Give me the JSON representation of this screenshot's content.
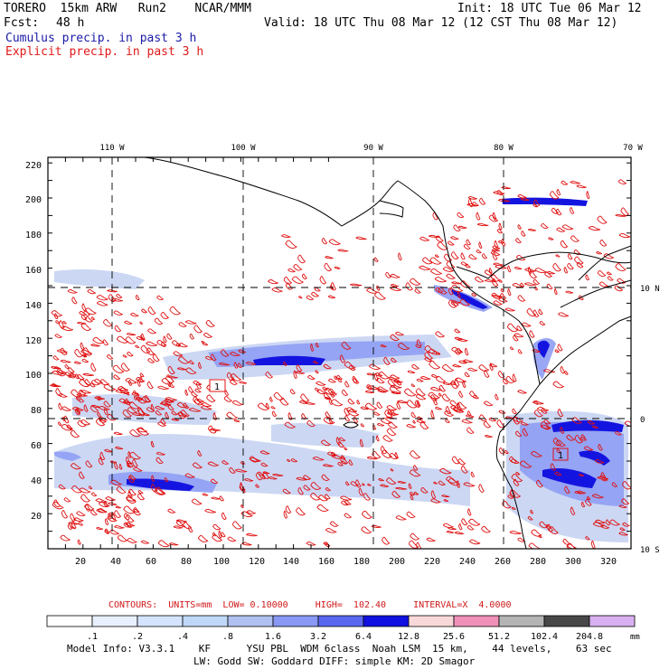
{
  "header": {
    "model": "TORERO  15km ARW   Run2    NCAR/MMM",
    "init": "Init: 18 UTC Tue 06 Mar 12",
    "fcst_label": "Fcst:",
    "fcst_value": "48 h",
    "valid": "Valid: 18 UTC Thu 08 Mar 12 (12 CST Thu 08 Mar 12)",
    "field_cumulus": "Cumulus precip. in past 3 h",
    "field_explicit": "Explicit precip. in past 3 h"
  },
  "map": {
    "lon_labels": [
      "110 W",
      "100 W",
      "90 W",
      "80 W",
      "70 W"
    ],
    "lat_labels": [
      "10 N",
      "0",
      "10 S"
    ],
    "y_ticks": [
      "220",
      "200",
      "180",
      "160",
      "140",
      "120",
      "100",
      "80",
      "60",
      "40",
      "20"
    ],
    "x_ticks": [
      "20",
      "40",
      "60",
      "80",
      "100",
      "120",
      "140",
      "160",
      "180",
      "200",
      "220",
      "240",
      "260",
      "280",
      "300",
      "320"
    ],
    "label_box_1": "1",
    "label_box_2": "1",
    "colors": {
      "contour": "#e01010",
      "coast": "#000000",
      "precip_light": "#c8d4f0",
      "precip_mid": "#6d7cf0",
      "precip_heavy": "#1010e0"
    }
  },
  "contours": {
    "text": "CONTOURS:  UNITS=mm  LOW= 0.10000     HIGH=  102.40     INTERVAL=X  4.0000"
  },
  "colorbar": {
    "labels": [
      ".1",
      ".2",
      ".4",
      ".8",
      "1.6",
      "3.2",
      "6.4",
      "12.8",
      "25.6",
      "51.2",
      "102.4",
      "204.8"
    ],
    "unit": "mm",
    "colors": [
      "#ffffff",
      "#e8f0ff",
      "#d4e4ff",
      "#c0d8f8",
      "#b0c0f0",
      "#8898f4",
      "#5a68f0",
      "#1010e0",
      "#f8d8d8",
      "#f090b8",
      "#b4b4b4",
      "#484848",
      "#d8b0f0"
    ]
  },
  "footer": {
    "line1": "Model Info: V3.3.1    KF      YSU PBL  WDM 6class  Noah LSM  15 km,    44 levels,    63 sec",
    "line2": "LW: Godd SW: Goddard DIFF: simple KM: 2D Smagor"
  }
}
